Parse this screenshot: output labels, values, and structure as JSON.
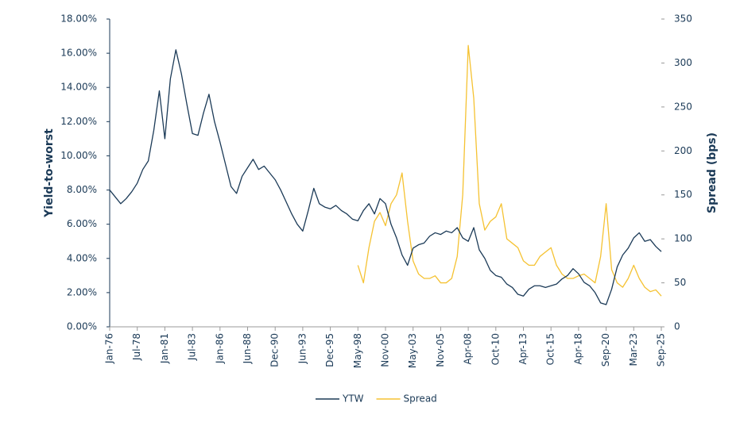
{
  "chart_data": {
    "type": "line",
    "y_label": "Yield-to-worst",
    "y2_label": "Spread (bps)",
    "categories": [
      "Jan-76",
      null,
      null,
      null,
      null,
      "Jul-78",
      null,
      null,
      null,
      null,
      "Jan-81",
      null,
      null,
      null,
      null,
      "Jul-83",
      null,
      null,
      null,
      null,
      "Jan-86",
      null,
      null,
      null,
      null,
      "Jun-88",
      null,
      null,
      null,
      null,
      "Dec-90",
      null,
      null,
      null,
      null,
      "Jun-93",
      null,
      null,
      null,
      null,
      "Dec-95",
      null,
      null,
      null,
      null,
      "May-98",
      null,
      null,
      null,
      null,
      "Nov-00",
      null,
      null,
      null,
      null,
      "May-03",
      null,
      null,
      null,
      null,
      "Nov-05",
      null,
      null,
      null,
      null,
      "Apr-08",
      null,
      null,
      null,
      null,
      "Oct-10",
      null,
      null,
      null,
      null,
      "Apr-13",
      null,
      null,
      null,
      null,
      "Oct-15",
      null,
      null,
      null,
      null,
      "Apr-18",
      null,
      null,
      null,
      null,
      "Sep-20",
      null,
      null,
      null,
      null,
      "Mar-23",
      null,
      null,
      null,
      null,
      "Sep-25"
    ],
    "series": [
      {
        "name": "YTW",
        "color": "#1b3a57",
        "axis": "y",
        "values": [
          8.0,
          7.6,
          7.2,
          7.5,
          7.9,
          8.4,
          9.2,
          9.7,
          11.5,
          13.8,
          11.0,
          14.5,
          16.2,
          14.8,
          13.0,
          11.3,
          11.2,
          12.5,
          13.6,
          12.0,
          10.8,
          9.5,
          8.2,
          7.8,
          8.8,
          9.3,
          9.8,
          9.2,
          9.4,
          9.0,
          8.6,
          8.0,
          7.3,
          6.6,
          6.0,
          5.6,
          6.8,
          8.1,
          7.2,
          7.0,
          6.9,
          7.1,
          6.8,
          6.6,
          6.3,
          6.2,
          6.8,
          7.2,
          6.6,
          7.5,
          7.2,
          6.0,
          5.2,
          4.2,
          3.6,
          4.6,
          4.8,
          4.9,
          5.3,
          5.5,
          5.4,
          5.6,
          5.5,
          5.8,
          5.2,
          5.0,
          5.8,
          4.5,
          4.0,
          3.3,
          3.0,
          2.9,
          2.5,
          2.3,
          1.9,
          1.8,
          2.2,
          2.4,
          2.4,
          2.3,
          2.4,
          2.5,
          2.8,
          3.0,
          3.4,
          3.1,
          2.6,
          2.4,
          2.0,
          1.4,
          1.3,
          2.2,
          3.5,
          4.2,
          4.6,
          5.2,
          5.5,
          5.0,
          5.1,
          4.7,
          4.4
        ]
      },
      {
        "name": "Spread",
        "color": "#f5c232",
        "axis": "y2",
        "values": [
          null,
          null,
          null,
          null,
          null,
          null,
          null,
          null,
          null,
          null,
          null,
          null,
          null,
          null,
          null,
          null,
          null,
          null,
          null,
          null,
          null,
          null,
          null,
          null,
          null,
          null,
          null,
          null,
          null,
          null,
          null,
          null,
          null,
          null,
          null,
          null,
          null,
          null,
          null,
          null,
          null,
          null,
          null,
          null,
          null,
          70,
          50,
          90,
          120,
          130,
          115,
          140,
          150,
          175,
          120,
          75,
          60,
          55,
          55,
          58,
          50,
          50,
          55,
          80,
          150,
          320,
          260,
          140,
          110,
          120,
          125,
          140,
          100,
          95,
          90,
          75,
          70,
          70,
          80,
          85,
          90,
          70,
          60,
          55,
          55,
          58,
          60,
          55,
          50,
          80,
          140,
          65,
          50,
          45,
          55,
          70,
          55,
          45,
          40,
          42,
          35
        ]
      }
    ],
    "ylim": [
      0,
      18
    ],
    "yticks": [
      {
        "value": 0,
        "label": "0.00%"
      },
      {
        "value": 2,
        "label": "2.00%"
      },
      {
        "value": 4,
        "label": "4.00%"
      },
      {
        "value": 6,
        "label": "6.00%"
      },
      {
        "value": 8,
        "label": "8.00%"
      },
      {
        "value": 10,
        "label": "10.00%"
      },
      {
        "value": 12,
        "label": "12.00%"
      },
      {
        "value": 14,
        "label": "14.00%"
      },
      {
        "value": 16,
        "label": "16.00%"
      },
      {
        "value": 18,
        "label": "18.00%"
      }
    ],
    "y2lim": [
      0,
      350
    ],
    "y2ticks": [
      0,
      50,
      100,
      150,
      200,
      250,
      300,
      350
    ],
    "legend": "bottom"
  }
}
